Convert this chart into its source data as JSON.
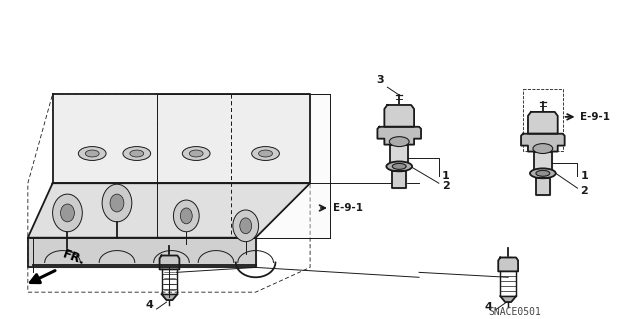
{
  "bg_color": "#ffffff",
  "line_color": "#1a1a1a",
  "ref_code": "SNACE0501",
  "fr_label": "FR.",
  "e91_label": "E-9-1",
  "lw_main": 1.3,
  "lw_thin": 0.7,
  "lw_dash": 0.6,
  "font_size_label": 8,
  "font_size_ref": 7.5,
  "font_size_code": 7
}
